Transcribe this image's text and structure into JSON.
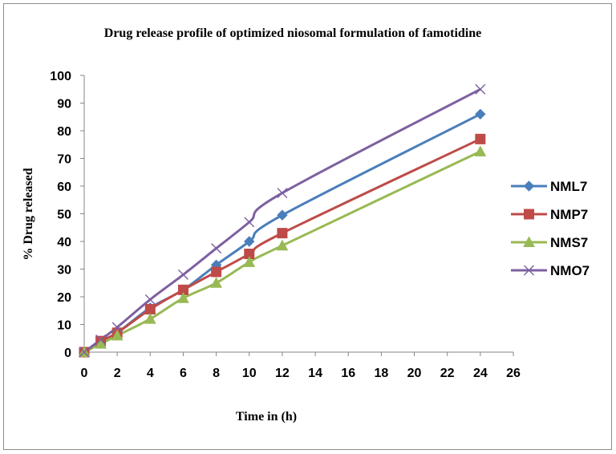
{
  "chart_data": {
    "type": "line",
    "title": "Drug release profile of optimized niosomal formulation of famotidine",
    "xlabel": "Time in (h)",
    "ylabel": "% Drug released",
    "xlim": [
      0,
      26
    ],
    "ylim": [
      0,
      100
    ],
    "xticks": [
      "0",
      "2",
      "4",
      "6",
      "8",
      "10",
      "12",
      "14",
      "16",
      "18",
      "20",
      "22",
      "24",
      "26"
    ],
    "yticks": [
      "0",
      "10",
      "20",
      "30",
      "40",
      "50",
      "60",
      "70",
      "80",
      "90",
      "100"
    ],
    "grid": false,
    "legend_position": "right",
    "x": [
      0,
      1,
      2,
      4,
      6,
      8,
      10,
      12,
      24
    ],
    "series": [
      {
        "name": "NML7",
        "color": "#4a7ebb",
        "marker": "diamond",
        "values": [
          0,
          3.5,
          7,
          16,
          22.5,
          31.5,
          40,
          49.5,
          86
        ]
      },
      {
        "name": "NMP7",
        "color": "#be4b48",
        "marker": "square",
        "values": [
          0,
          4,
          7,
          15.5,
          22.5,
          29,
          35.5,
          43,
          77
        ]
      },
      {
        "name": "NMS7",
        "color": "#98b954",
        "marker": "triangle",
        "values": [
          0,
          3,
          6,
          12,
          19.5,
          25,
          32.5,
          38.5,
          72.5
        ]
      },
      {
        "name": "NMO7",
        "color": "#7d60a0",
        "marker": "x",
        "values": [
          0,
          4.5,
          9,
          19,
          28,
          37.5,
          47,
          57.5,
          95
        ]
      }
    ]
  }
}
